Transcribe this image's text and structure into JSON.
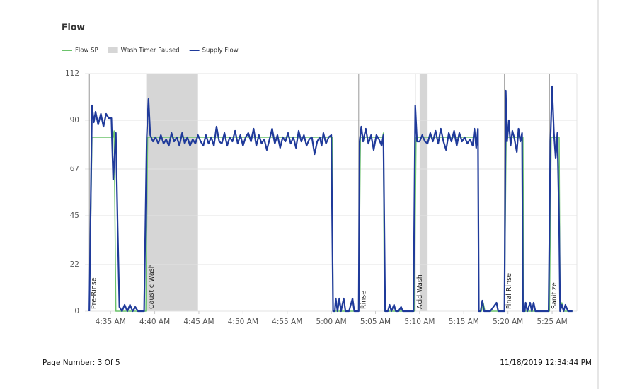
{
  "chart_data": {
    "type": "line",
    "title": "Flow",
    "xlim": [
      272.1,
      327.8
    ],
    "xticks": [
      {
        "value": 275,
        "label": "4:35 AM"
      },
      {
        "value": 280,
        "label": "4:40 AM"
      },
      {
        "value": 285,
        "label": "4:45 AM"
      },
      {
        "value": 290,
        "label": "4:50 AM"
      },
      {
        "value": 295,
        "label": "4:55 AM"
      },
      {
        "value": 300,
        "label": "5:00 AM"
      },
      {
        "value": 305,
        "label": "5:05 AM"
      },
      {
        "value": 310,
        "label": "5:10 AM"
      },
      {
        "value": 315,
        "label": "5:15 AM"
      },
      {
        "value": 320,
        "label": "5:20 AM"
      },
      {
        "value": 325,
        "label": "5:25 AM"
      }
    ],
    "ylim": [
      0,
      112
    ],
    "yticks": [
      0,
      22,
      45,
      67,
      90,
      112
    ],
    "grid": true,
    "bands": {
      "name": "Wash Timer Paused",
      "color": "#d6d6d6",
      "ranges": [
        [
          279.1,
          284.9
        ],
        [
          310.0,
          310.9
        ]
      ]
    },
    "phases": [
      {
        "x": 272.6,
        "label": "Pre-Rinse"
      },
      {
        "x": 279.1,
        "label": "Caustic Wash"
      },
      {
        "x": 303.1,
        "label": "Rinse"
      },
      {
        "x": 309.5,
        "label": "Acid Wash"
      },
      {
        "x": 319.6,
        "label": "Final Rinse"
      },
      {
        "x": 324.7,
        "label": "Sanitize"
      }
    ],
    "series": [
      {
        "name": "Flow SP",
        "color": "#6cc36c",
        "x": [
          272.6,
          272.9,
          275.3,
          275.4,
          275.6,
          279.0,
          279.2,
          300.1,
          300.2,
          303.1,
          303.3,
          305.8,
          305.9,
          306.0,
          309.4,
          309.6,
          316.6,
          316.7,
          317.0,
          317.2,
          317.4,
          319.6,
          319.8,
          321.7,
          321.8,
          324.7,
          324.9,
          325.8,
          325.9,
          326.1,
          326.3,
          327.3
        ],
        "values": [
          0,
          82,
          82,
          85,
          0,
          0,
          82,
          82,
          0,
          0,
          82,
          82,
          84,
          0,
          0,
          82,
          82,
          0,
          0,
          4,
          0,
          0,
          82,
          82,
          0,
          0,
          82,
          82,
          0,
          4,
          0,
          0
        ]
      },
      {
        "name": "Supply Flow",
        "color": "#1f3a9a",
        "x": [
          272.6,
          272.9,
          273.1,
          273.3,
          273.6,
          273.9,
          274.2,
          274.5,
          274.8,
          275.1,
          275.3,
          275.6,
          275.8,
          276.0,
          276.3,
          276.6,
          276.9,
          277.2,
          277.5,
          277.8,
          278.1,
          278.8,
          279.1,
          279.3,
          279.5,
          279.8,
          280.1,
          280.4,
          280.7,
          281.0,
          281.3,
          281.6,
          281.9,
          282.2,
          282.5,
          282.8,
          283.1,
          283.4,
          283.7,
          284.0,
          284.3,
          284.6,
          284.9,
          285.2,
          285.5,
          285.8,
          286.1,
          286.4,
          286.7,
          287.0,
          287.3,
          287.6,
          287.9,
          288.2,
          288.5,
          288.8,
          289.1,
          289.4,
          289.7,
          290.0,
          290.3,
          290.6,
          290.9,
          291.2,
          291.5,
          291.8,
          292.1,
          292.4,
          292.7,
          293.0,
          293.3,
          293.6,
          293.9,
          294.2,
          294.5,
          294.8,
          295.1,
          295.4,
          295.7,
          296.0,
          296.3,
          296.6,
          296.9,
          297.2,
          297.5,
          297.8,
          298.1,
          298.4,
          298.7,
          298.9,
          299.1,
          299.4,
          299.7,
          300.0,
          300.2,
          300.4,
          300.5,
          300.7,
          300.9,
          301.1,
          301.4,
          301.6,
          302.0,
          302.4,
          302.6,
          303.1,
          303.2,
          303.4,
          303.6,
          303.9,
          304.2,
          304.5,
          304.8,
          305.1,
          305.4,
          305.7,
          305.9,
          306.1,
          306.4,
          306.6,
          306.8,
          307.1,
          307.3,
          307.6,
          307.9,
          308.1,
          309.3,
          309.5,
          309.7,
          310.0,
          310.3,
          310.6,
          310.9,
          311.2,
          311.5,
          311.8,
          312.1,
          312.4,
          312.7,
          313.0,
          313.3,
          313.6,
          313.9,
          314.2,
          314.5,
          314.8,
          315.1,
          315.4,
          315.7,
          316.0,
          316.2,
          316.4,
          316.6,
          316.7,
          316.9,
          317.1,
          317.3,
          318.0,
          318.7,
          318.9,
          319.6,
          319.75,
          319.9,
          320.1,
          320.3,
          320.5,
          320.7,
          321.0,
          321.2,
          321.4,
          321.6,
          321.7,
          321.9,
          322.0,
          322.2,
          322.5,
          322.7,
          322.9,
          323.1,
          324.6,
          324.8,
          325.0,
          325.2,
          325.4,
          325.6,
          325.8,
          325.9,
          326.1,
          326.3,
          326.5,
          326.8,
          327.3
        ],
        "values": [
          0,
          97,
          89,
          94,
          88,
          93,
          87,
          93,
          91,
          91,
          62,
          84,
          40,
          2,
          0,
          3,
          0,
          3,
          0,
          2,
          0,
          0,
          82,
          100,
          83,
          80,
          82,
          79,
          83,
          79,
          81,
          78,
          84,
          80,
          82,
          78,
          84,
          79,
          82,
          78,
          81,
          79,
          83,
          80,
          78,
          83,
          79,
          82,
          78,
          87,
          80,
          79,
          84,
          78,
          82,
          80,
          85,
          79,
          83,
          78,
          82,
          84,
          80,
          86,
          78,
          83,
          79,
          81,
          76,
          81,
          86,
          79,
          83,
          77,
          82,
          80,
          84,
          79,
          82,
          77,
          85,
          80,
          83,
          78,
          81,
          82,
          74,
          80,
          82,
          78,
          84,
          79,
          82,
          83,
          0,
          0,
          6,
          0,
          6,
          0,
          6,
          0,
          0,
          6,
          0,
          0,
          80,
          87,
          80,
          86,
          79,
          83,
          76,
          83,
          81,
          78,
          83,
          0,
          0,
          3,
          0,
          3,
          0,
          0,
          2,
          0,
          0,
          97,
          80,
          80,
          83,
          80,
          79,
          84,
          80,
          85,
          79,
          86,
          80,
          76,
          84,
          80,
          85,
          78,
          84,
          80,
          82,
          79,
          81,
          78,
          86,
          77,
          86,
          0,
          0,
          5,
          0,
          0,
          4,
          0,
          0,
          104,
          80,
          90,
          78,
          85,
          82,
          75,
          86,
          80,
          84,
          0,
          0,
          4,
          0,
          4,
          0,
          4,
          0,
          0,
          80,
          106,
          84,
          72,
          84,
          40,
          0,
          3,
          0,
          3,
          0,
          0
        ]
      }
    ]
  },
  "footer": {
    "page": "Page Number: 3 Of 5",
    "timestamp": "11/18/2019 12:34:44 PM"
  }
}
